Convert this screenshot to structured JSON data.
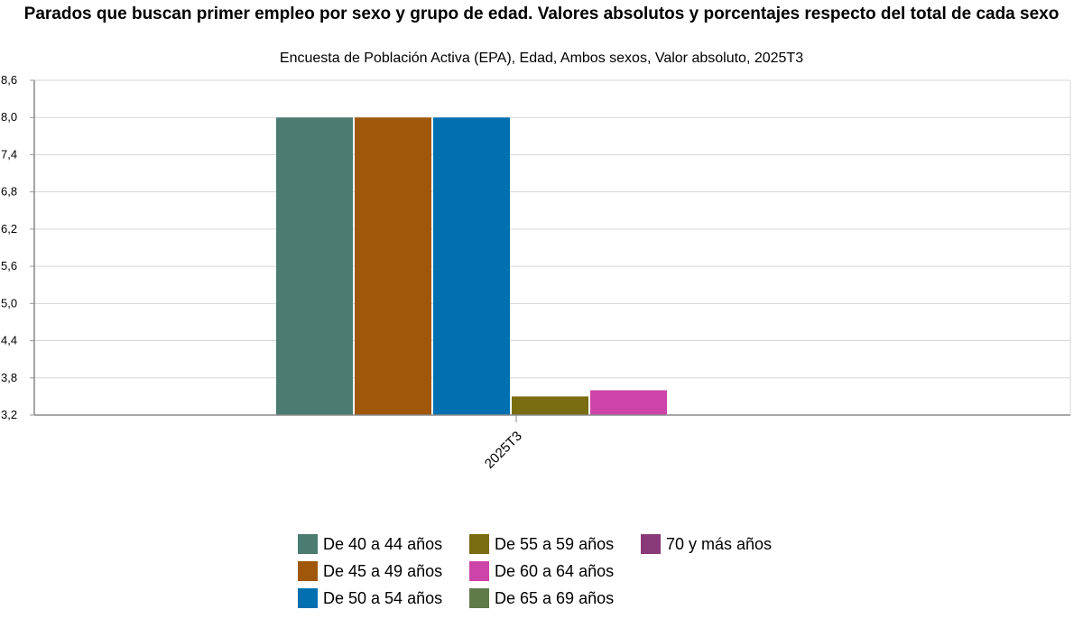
{
  "chart_data": {
    "type": "bar",
    "title": "Parados que buscan primer empleo por sexo y grupo de edad. Valores absolutos y porcentajes respecto del total de cada sexo",
    "subtitle": "Encuesta de Población Activa (EPA), Edad, Ambos sexos, Valor absoluto, 2025T3",
    "categories": [
      "2025T3"
    ],
    "ylim": [
      3.2,
      8.6
    ],
    "yticks": [
      "3,2",
      "3,8",
      "4,4",
      "5,0",
      "5,6",
      "6,2",
      "6,8",
      "7,4",
      "8,0",
      "8,6"
    ],
    "ytick_values": [
      3.2,
      3.8,
      4.4,
      5.0,
      5.6,
      6.2,
      6.8,
      7.4,
      8.0,
      8.6
    ],
    "grid": true,
    "legend_position": "bottom",
    "series": [
      {
        "name": "De 40 a 44 años",
        "color": "#4a7c71",
        "values": [
          8.0
        ]
      },
      {
        "name": "De 45 a 49 años",
        "color": "#a0570a",
        "values": [
          8.0
        ]
      },
      {
        "name": "De 50 a 54 años",
        "color": "#0070b0",
        "values": [
          8.0
        ]
      },
      {
        "name": "De 55 a 59 años",
        "color": "#7a6c10",
        "values": [
          3.5
        ]
      },
      {
        "name": "De 60 a 64 años",
        "color": "#cc44a8",
        "values": [
          3.6
        ]
      },
      {
        "name": "De 65 a 69 años",
        "color": "#617a4a",
        "values": [
          null
        ]
      },
      {
        "name": "70 y más años",
        "color": "#8a3a78",
        "values": [
          null
        ]
      }
    ]
  }
}
